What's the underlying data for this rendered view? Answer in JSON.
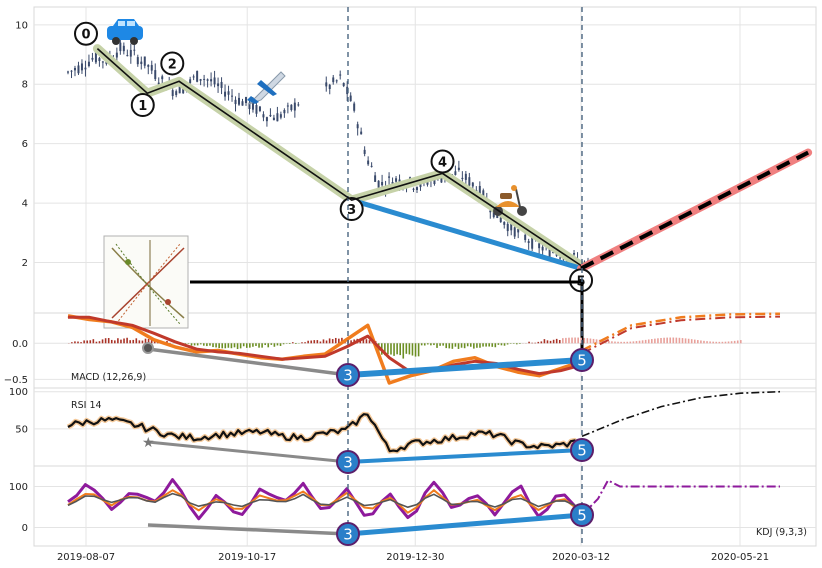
{
  "chart_data": [
    {
      "type": "line",
      "panel": "price",
      "y_ticks": [
        10,
        8,
        6,
        4,
        2
      ],
      "ylim": [
        0.3,
        10.6
      ],
      "x_tick_labels": [
        "2019-08-07",
        "2019-10-17",
        "2019-12-30",
        "2020-03-12",
        "2020-05-21"
      ],
      "grid": true,
      "wave_points": [
        {
          "label": "0",
          "date": "2019-08-07",
          "value": 9.7
        },
        {
          "label": "1",
          "date": "2019-09-01",
          "value": 7.3
        },
        {
          "label": "2",
          "date": "2019-09-14",
          "value": 8.7
        },
        {
          "label": "3",
          "date": "2019-12-02",
          "value": 3.8
        },
        {
          "label": "4",
          "date": "2020-01-11",
          "value": 5.4
        },
        {
          "label": "5",
          "date": "2020-03-12",
          "value": 1.4
        }
      ],
      "wave_line": [
        [
          "2019-08-12",
          9.2
        ],
        [
          "2019-09-03",
          7.7
        ],
        [
          "2019-09-17",
          8.1
        ],
        [
          "2019-12-02",
          4.1
        ],
        [
          "2020-01-11",
          5.0
        ],
        [
          "2020-03-12",
          1.9
        ]
      ],
      "trend_line": [
        [
          "2019-12-02",
          4.1
        ],
        [
          "2020-03-12",
          1.8
        ]
      ],
      "projection": [
        [
          "2020-03-12",
          1.8
        ],
        [
          "2020-06-20",
          5.7
        ]
      ],
      "price_open_close_sample": [
        8.4,
        8.6,
        8.9,
        8.8,
        9.2,
        9.0,
        8.7,
        8.2,
        7.8,
        7.9,
        8.3,
        8.1,
        7.8,
        7.5,
        7.3,
        7.0,
        6.9,
        7.1,
        7.5,
        7.7,
        7.9,
        8.2,
        7.2,
        5.5,
        4.6,
        4.8,
        4.7,
        4.6,
        4.8,
        4.9,
        5.0,
        4.7,
        4.2,
        3.6,
        3.2,
        2.9,
        2.6,
        2.4,
        2.3,
        2.1,
        1.9
      ]
    },
    {
      "type": "line",
      "panel": "macd",
      "label": "MACD (12,26,9)",
      "y_ticks": [
        "0.0",
        "−0.5"
      ],
      "ylim": [
        -0.62,
        0.42
      ],
      "series": [
        {
          "values": [
            0.38,
            0.33,
            0.3,
            0.22,
            0.05,
            -0.05,
            -0.12,
            -0.1,
            -0.15,
            -0.2,
            -0.22,
            -0.18,
            -0.15,
            0.05,
            0.25,
            -0.55,
            -0.45,
            -0.38,
            -0.25,
            -0.2,
            -0.32,
            -0.4,
            -0.45,
            -0.35,
            -0.25
          ]
        },
        {
          "values": [
            0.36,
            0.36,
            0.3,
            0.25,
            0.14,
            0.02,
            -0.08,
            -0.12,
            -0.14,
            -0.18,
            -0.22,
            -0.2,
            -0.18,
            -0.05,
            0.1,
            -0.2,
            -0.4,
            -0.38,
            -0.3,
            -0.25,
            -0.28,
            -0.36,
            -0.42,
            -0.38,
            -0.3
          ]
        }
      ],
      "forecast": [
        -0.1,
        0.25,
        0.36,
        0.4,
        0.41
      ]
    },
    {
      "type": "line",
      "panel": "rsi",
      "label": "RSI 14",
      "y_ticks": [
        "100",
        "50"
      ],
      "ylim": [
        0,
        105
      ],
      "values": [
        55,
        60,
        62,
        56,
        48,
        40,
        38,
        42,
        44,
        46,
        40,
        38,
        44,
        48,
        72,
        20,
        30,
        34,
        38,
        44,
        42,
        30,
        26,
        28,
        34
      ],
      "forecast": [
        40,
        62,
        80,
        92,
        98,
        100
      ]
    },
    {
      "type": "line",
      "panel": "kdj",
      "label": "KDJ (9,3,3)",
      "y_ticks": [
        "100",
        "0"
      ],
      "ylim": [
        -45,
        150
      ],
      "series": [
        {
          "values": [
            60,
            110,
            40,
            90,
            60,
            120,
            20,
            80,
            20,
            100,
            60,
            110,
            30,
            100,
            20,
            90,
            10,
            120,
            40,
            80,
            30,
            110,
            20,
            90,
            30
          ]
        },
        {
          "values": [
            55,
            90,
            55,
            80,
            60,
            95,
            40,
            70,
            40,
            80,
            60,
            90,
            45,
            85,
            40,
            75,
            30,
            95,
            50,
            70,
            40,
            85,
            40,
            75,
            40
          ]
        },
        {
          "values": [
            55,
            80,
            60,
            75,
            60,
            85,
            50,
            65,
            50,
            70,
            60,
            80,
            50,
            75,
            50,
            70,
            45,
            85,
            55,
            65,
            50,
            75,
            50,
            70,
            45
          ]
        }
      ],
      "forecast": 100
    }
  ],
  "icons": [
    "car-icon",
    "airplane-icon",
    "scooter-icon"
  ],
  "colors": {
    "wave": "#c6d2a8",
    "trend": "#2a8bd0",
    "projection": "#f08080",
    "candle": "#3a4a6b",
    "divergence": "#8a8a8a",
    "label_circle": "#2a7fc9",
    "macd_pos": "#a93226",
    "macd_neg": "#6b8e23"
  }
}
